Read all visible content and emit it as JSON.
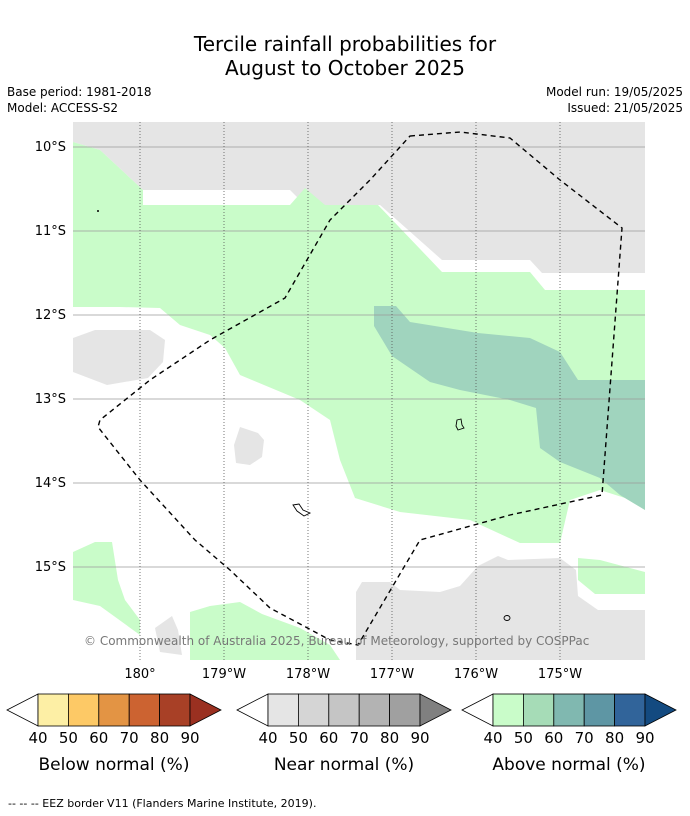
{
  "title_line1": "Tercile rainfall probabilities for",
  "title_line2": "August to October 2025",
  "base_period": "Base period: 1981-2018",
  "model": "Model: ACCESS-S2",
  "model_run": "Model run: 19/05/2025",
  "issued": "Issued: 21/05/2025",
  "lat_labels": [
    "10°S",
    "11°S",
    "12°S",
    "13°S",
    "14°S",
    "15°S"
  ],
  "lon_labels": [
    "180°",
    "179°W",
    "178°W",
    "177°W",
    "176°W",
    "175°W"
  ],
  "credit": "© Commonwealth of Australia 2025, Bureau of Meteorology, supported by COSPPac",
  "colorbars": [
    {
      "title": "Below normal (%)",
      "ticks": [
        "40",
        "50",
        "60",
        "70",
        "80",
        "90"
      ],
      "colors": [
        "#fdefa5",
        "#fdc966",
        "#e39444",
        "#cc6331",
        "#a84026",
        "#9a3020"
      ]
    },
    {
      "title": "Near normal (%)",
      "ticks": [
        "40",
        "50",
        "60",
        "70",
        "80",
        "90"
      ],
      "colors": [
        "#e5e5e5",
        "#d5d5d5",
        "#c5c5c5",
        "#b3b3b3",
        "#a0a0a0",
        "#808080"
      ]
    },
    {
      "title": "Above normal (%)",
      "ticks": [
        "40",
        "50",
        "60",
        "70",
        "80",
        "90"
      ],
      "colors": [
        "#c9fcc9",
        "#a6dcb7",
        "#80b8b0",
        "#5e96a4",
        "#31649a",
        "#134a80"
      ]
    }
  ],
  "footnote": "--  --  -- EEZ border V11 (Flanders Marine Institute, 2019).",
  "map_colors": {
    "near_normal": "#e5e5e5",
    "above_50": "#c9fcc9",
    "above_60": "#a0d4be"
  }
}
